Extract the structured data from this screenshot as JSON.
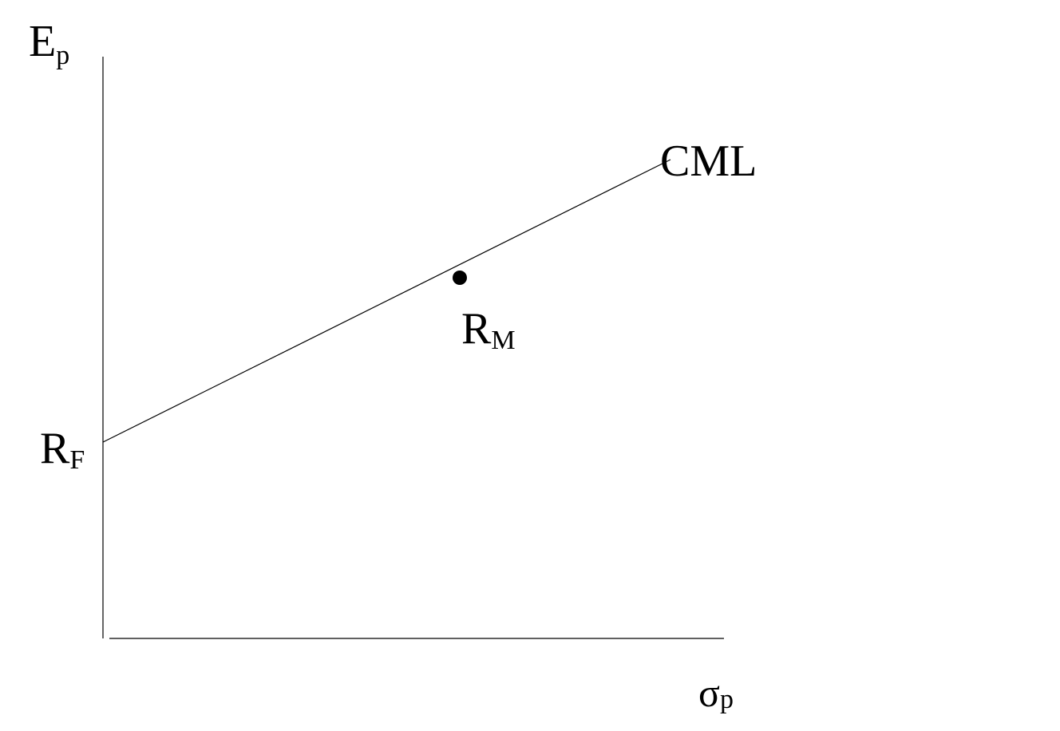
{
  "y_axis_label": {
    "main": "E",
    "sub": "p"
  },
  "x_axis_label": {
    "main": "σ",
    "sub": "p"
  },
  "line_label": "CML",
  "risk_free_label": {
    "main": "R",
    "sub": "F"
  },
  "market_point_label": {
    "main": "R",
    "sub": "M"
  },
  "colors": {
    "ink": "#000000",
    "background": "#ffffff"
  }
}
